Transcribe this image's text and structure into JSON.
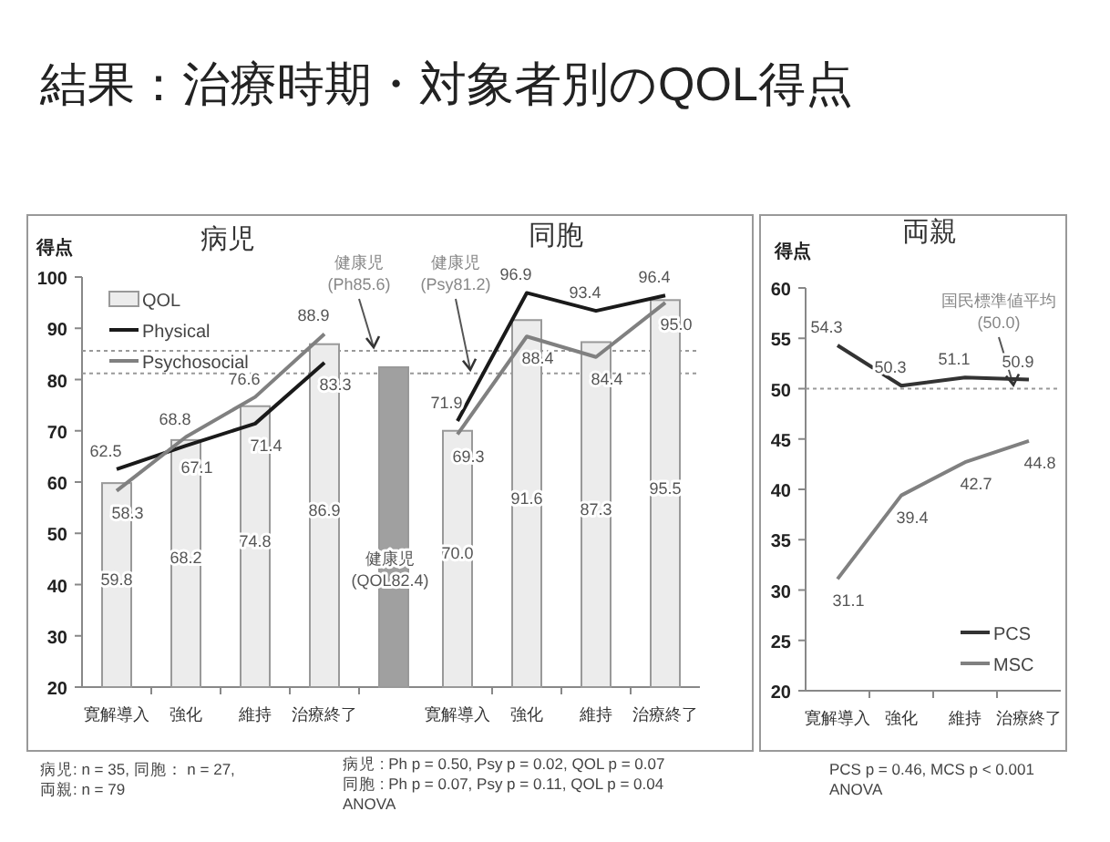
{
  "chart_data": [
    {
      "type": "bar",
      "title": "病児",
      "ylabel": "得点",
      "categories": [
        "寛解導入",
        "強化",
        "維持",
        "治療終了",
        null
      ],
      "series": [
        {
          "name": "QOL",
          "type": "bar",
          "colors": [
            "#ececec",
            "#ececec",
            "#ececec",
            "#ececec",
            "#a0a0a0"
          ],
          "values": [
            59.8,
            68.2,
            74.8,
            86.9,
            82.4
          ],
          "value_labels": [
            "59.8",
            "68.2",
            "74.8",
            "86.9",
            "健康児\n(QOL82.4)"
          ]
        },
        {
          "name": "Physical",
          "type": "line",
          "color": "#1a1a1a",
          "values": [
            62.5,
            67.1,
            71.4,
            83.3,
            null
          ],
          "value_labels": [
            "62.5",
            "67.1",
            "71.4",
            "83.3",
            null
          ]
        },
        {
          "name": "Psychosocial",
          "type": "line",
          "color": "#808080",
          "values": [
            58.3,
            68.8,
            76.6,
            88.9,
            null
          ],
          "value_labels": [
            "58.3",
            "68.8",
            "76.6",
            "88.9",
            null
          ]
        }
      ],
      "ylim": [
        20,
        100
      ],
      "yticks": [
        20,
        30,
        40,
        50,
        60,
        70,
        80,
        90,
        100
      ],
      "ref_lines": [
        {
          "axis": "y",
          "value": 85.6,
          "label": "健康児\n(Ph85.6)",
          "line_style": "dotted",
          "color": "#999999"
        },
        {
          "axis": "y",
          "value": 81.2,
          "line_style": "dotted",
          "color": "#999999"
        }
      ],
      "legend": "top left",
      "annotations": [
        "結果：治療時期・対象者別のQOL得点",
        "病児: n = 35, 同胞： n = 27,\n両親: n = 79",
        "病児 : Ph p = 0.50,  Psy p = 0.02,  QOL p = 0.07\n同胞 : Ph p = 0.07,  Psy p = 0.11,  QOL p = 0.04\nANOVA"
      ]
    },
    {
      "type": "bar",
      "title": "同胞",
      "categories": [
        "寛解導入",
        "強化",
        "維持",
        "治療終了"
      ],
      "series": [
        {
          "type": "bar",
          "color": "#ececec",
          "values": [
            70.0,
            91.6,
            87.3,
            95.5
          ],
          "value_labels": [
            "70.0",
            "91.6",
            "87.3",
            "95.5"
          ]
        },
        {
          "type": "line",
          "color": "#1a1a1a",
          "values": [
            71.9,
            96.9,
            93.4,
            96.4
          ],
          "value_labels": [
            "71.9",
            "96.9",
            "93.4",
            "96.4"
          ]
        },
        {
          "type": "line",
          "color": "#808080",
          "values": [
            69.3,
            88.4,
            84.4,
            95.0
          ],
          "value_labels": [
            "69.3",
            "88.4",
            "84.4",
            "95.0"
          ]
        }
      ],
      "ylim": [
        20,
        100
      ],
      "tick_labels": "x",
      "ref_lines": [
        {
          "axis": "y",
          "value": 85.6,
          "line_style": "dotted",
          "color": "#999999"
        },
        {
          "axis": "y",
          "value": 81.2,
          "label": "健康児\n(Psy81.2)",
          "line_style": "dotted",
          "color": "#999999"
        }
      ]
    },
    {
      "type": "line",
      "title": "両親",
      "ylabel": "得点",
      "categories": [
        "寛解導入",
        "強化",
        "維持",
        "治療終了"
      ],
      "series": [
        {
          "name": "PCS",
          "color": "#333333",
          "values": [
            54.3,
            50.3,
            51.1,
            50.9
          ],
          "value_labels": [
            "54.3",
            "50.3",
            "51.1",
            "50.9"
          ]
        },
        {
          "name": "MSC",
          "color": "#808080",
          "values": [
            31.1,
            39.4,
            42.7,
            44.8
          ],
          "value_labels": [
            "31.1",
            "39.4",
            "42.7",
            "44.8"
          ]
        }
      ],
      "ylim": [
        20,
        60
      ],
      "yticks": [
        20,
        25,
        30,
        35,
        40,
        45,
        50,
        55,
        60
      ],
      "ref_lines": [
        {
          "axis": "y",
          "value": 50.0,
          "label": "国民標準値平均\n(50.0)",
          "line_style": "dotted",
          "color": "#999999"
        }
      ],
      "legend": "bottom right",
      "annotations": [
        "PCS p = 0.46,  MCS p < 0.001\nANOVA"
      ]
    }
  ]
}
